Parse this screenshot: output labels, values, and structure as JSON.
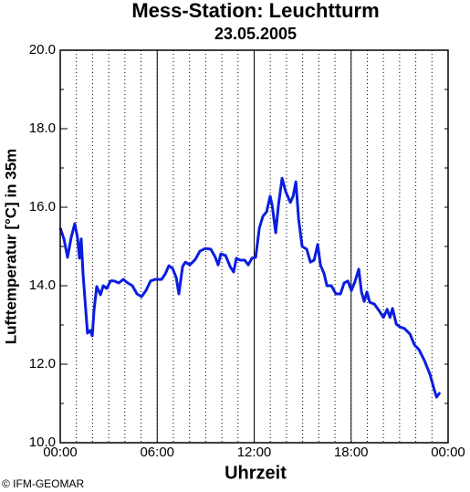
{
  "chart_data": {
    "type": "line",
    "title": "Mess-Station: Leuchtturm",
    "subtitle": "23.05.2005",
    "ylabel": "Lufttemperatur [°C] in 35m",
    "xlabel": "Uhrzeit",
    "credit": "© IFM-GEOMAR",
    "color": "#0a1de0",
    "x": [
      0,
      0.23,
      0.45,
      0.68,
      0.9,
      1.07,
      1.19,
      1.3,
      1.41,
      1.58,
      1.69,
      1.86,
      1.98,
      2.09,
      2.26,
      2.49,
      2.66,
      2.88,
      3.11,
      3.33,
      3.62,
      3.9,
      4.18,
      4.46,
      4.75,
      5.03,
      5.31,
      5.59,
      5.88,
      6.27,
      6.5,
      6.72,
      6.95,
      7.18,
      7.34,
      7.57,
      7.74,
      8.02,
      8.36,
      8.64,
      8.98,
      9.32,
      9.6,
      9.77,
      9.94,
      10.23,
      10.51,
      10.73,
      10.9,
      11.13,
      11.41,
      11.64,
      11.86,
      12.09,
      12.32,
      12.54,
      12.77,
      12.99,
      13.11,
      13.33,
      13.5,
      13.73,
      13.95,
      14.24,
      14.41,
      14.58,
      14.75,
      14.97,
      15.25,
      15.48,
      15.71,
      15.93,
      16.1,
      16.33,
      16.5,
      16.78,
      17.06,
      17.34,
      17.57,
      17.8,
      18.02,
      18.25,
      18.47,
      18.64,
      18.81,
      18.98,
      19.15,
      19.44,
      19.72,
      20.0,
      20.23,
      20.4,
      20.56,
      20.79,
      21.02,
      21.3,
      21.64,
      21.92,
      22.2,
      22.54,
      22.88,
      23.11,
      23.28,
      23.5
    ],
    "values": [
      15.47,
      15.19,
      14.72,
      15.23,
      15.58,
      15.23,
      14.7,
      15.19,
      14.3,
      13.37,
      12.79,
      12.86,
      12.72,
      13.37,
      13.98,
      13.77,
      14.0,
      13.93,
      14.12,
      14.12,
      14.07,
      14.16,
      14.07,
      14.0,
      13.79,
      13.72,
      13.88,
      14.12,
      14.16,
      14.16,
      14.3,
      14.51,
      14.44,
      14.21,
      13.79,
      14.49,
      14.6,
      14.53,
      14.67,
      14.88,
      14.95,
      14.93,
      14.72,
      14.53,
      14.81,
      14.77,
      14.49,
      14.35,
      14.7,
      14.65,
      14.65,
      14.53,
      14.7,
      14.72,
      15.47,
      15.77,
      15.88,
      16.28,
      16.05,
      15.35,
      16.05,
      16.74,
      16.4,
      16.12,
      16.28,
      16.65,
      15.7,
      15.0,
      14.93,
      14.6,
      14.65,
      15.05,
      14.53,
      14.3,
      14.0,
      14.0,
      13.79,
      13.79,
      14.07,
      14.12,
      13.88,
      14.12,
      14.42,
      13.84,
      13.6,
      13.84,
      13.58,
      13.53,
      13.37,
      13.19,
      13.4,
      13.19,
      13.42,
      13.02,
      12.95,
      12.91,
      12.77,
      12.49,
      12.37,
      12.09,
      11.74,
      11.4,
      11.16,
      11.28
    ],
    "xlim": [
      0,
      24
    ],
    "xticks": [
      {
        "value": 0,
        "label": "00:00"
      },
      {
        "value": 6,
        "label": "06:00"
      },
      {
        "value": 12,
        "label": "12:00"
      },
      {
        "value": 18,
        "label": "18:00"
      },
      {
        "value": 24,
        "label": "00:00"
      }
    ],
    "ylim": [
      10,
      20
    ],
    "yticks": [
      {
        "value": 10,
        "label": "10.0"
      },
      {
        "value": 12,
        "label": "12.0"
      },
      {
        "value": 14,
        "label": "14.0"
      },
      {
        "value": 16,
        "label": "16.0"
      },
      {
        "value": 18,
        "label": "18.0"
      },
      {
        "value": 20,
        "label": "20.0"
      }
    ],
    "grid": true
  }
}
